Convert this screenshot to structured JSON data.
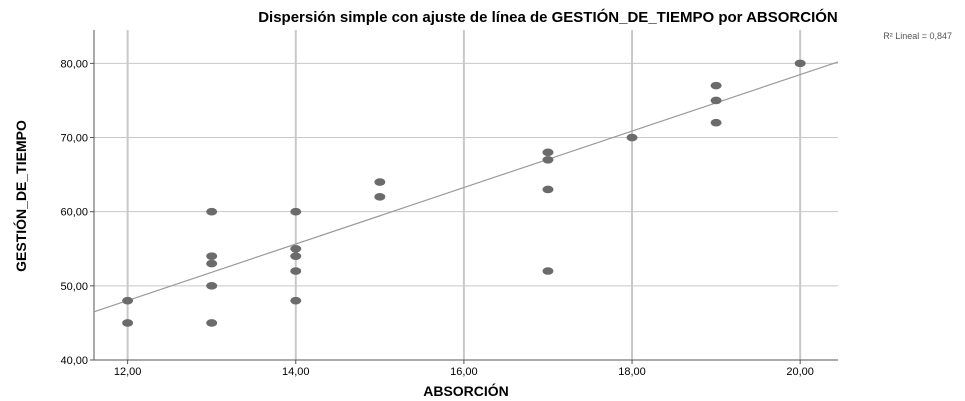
{
  "chart_data": {
    "type": "scatter",
    "title": "Dispersión simple con ajuste de línea de GESTIÓN_DE_TIEMPO por ABSORCIÓN",
    "xlabel": "ABSORCIÓN",
    "ylabel": "GESTIÓN_DE_TIEMPO",
    "xlim": [
      11.6,
      20.45
    ],
    "ylim": [
      40,
      84.5
    ],
    "x_ticks": [
      12,
      14,
      16,
      18,
      20
    ],
    "x_tick_labels": [
      "12,00",
      "14,00",
      "16,00",
      "18,00",
      "20,00"
    ],
    "y_ticks": [
      40,
      50,
      60,
      70,
      80
    ],
    "y_tick_labels": [
      "40,00",
      "50,00",
      "60,00",
      "70,00",
      "80,00"
    ],
    "grid": {
      "x": true,
      "y": true
    },
    "points": [
      {
        "x": 12,
        "y": 48
      },
      {
        "x": 12,
        "y": 45
      },
      {
        "x": 13,
        "y": 60
      },
      {
        "x": 13,
        "y": 54
      },
      {
        "x": 13,
        "y": 53
      },
      {
        "x": 13,
        "y": 50
      },
      {
        "x": 13,
        "y": 45
      },
      {
        "x": 14,
        "y": 60
      },
      {
        "x": 14,
        "y": 55
      },
      {
        "x": 14,
        "y": 54
      },
      {
        "x": 14,
        "y": 52
      },
      {
        "x": 14,
        "y": 48
      },
      {
        "x": 15,
        "y": 64
      },
      {
        "x": 15,
        "y": 62
      },
      {
        "x": 17,
        "y": 68
      },
      {
        "x": 17,
        "y": 67
      },
      {
        "x": 17,
        "y": 63
      },
      {
        "x": 17,
        "y": 52
      },
      {
        "x": 18,
        "y": 70
      },
      {
        "x": 19,
        "y": 77
      },
      {
        "x": 19,
        "y": 75
      },
      {
        "x": 19,
        "y": 72
      },
      {
        "x": 20,
        "y": 80
      }
    ],
    "fit_line": {
      "x1": 11.6,
      "y1": 46.5,
      "x2": 20.45,
      "y2": 80.2
    },
    "r2_label": "R² Lineal = 0,847",
    "colors": {
      "point": "#6b6b6b",
      "fit_line": "#9a9a9a",
      "grid": "#c8c8c8",
      "axis": "#555555"
    }
  }
}
